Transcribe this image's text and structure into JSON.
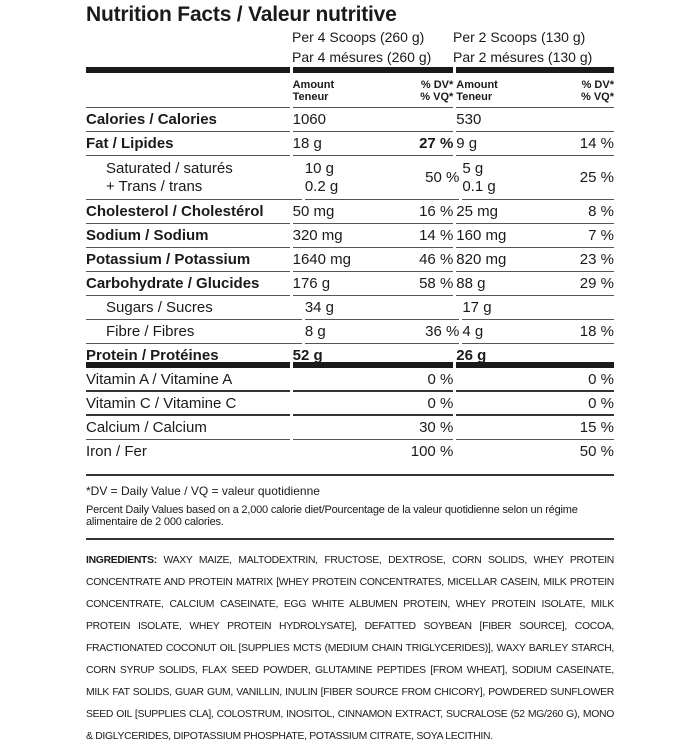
{
  "title": "Nutrition Facts / Valeur nutritive",
  "servings": [
    {
      "en": "Per 4 Scoops (260 g)",
      "fr": "Par 4 mésures (260 g)"
    },
    {
      "en": "Per 2 Scoops (130 g)",
      "fr": "Par 2 mésures (130 g)"
    }
  ],
  "header": {
    "amount": "Amount",
    "teneur": "Teneur",
    "dv": "% DV*",
    "vq": "% VQ*"
  },
  "rows": [
    {
      "label": "Calories / Calories",
      "a1": "1060",
      "d1": "",
      "a2": "530",
      "d2": ""
    },
    {
      "label": "Fat / Lipides",
      "a1": "18 g",
      "d1": "27 %",
      "a2": "9 g",
      "d2": "14 %"
    },
    {
      "label": "Saturated / saturés",
      "label2": "+ Trans / trans",
      "a1": "10 g",
      "a1b": "0.2 g",
      "d1": "50 %",
      "a2": "5 g",
      "a2b": "0.1 g",
      "d2": "25 %"
    },
    {
      "label": "Cholesterol / Cholestérol",
      "a1": "50 mg",
      "d1": "16 %",
      "a2": "25 mg",
      "d2": "8 %"
    },
    {
      "label": "Sodium / Sodium",
      "a1": "320 mg",
      "d1": "14 %",
      "a2": "160 mg",
      "d2": "7 %"
    },
    {
      "label": "Potassium / Potassium",
      "a1": "1640 mg",
      "d1": "46 %",
      "a2": "820 mg",
      "d2": "23 %"
    },
    {
      "label": "Carbohydrate / Glucides",
      "a1": "176 g",
      "d1": "58 %",
      "a2": "88 g",
      "d2": "29 %"
    },
    {
      "label": "Sugars / Sucres",
      "a1": "34 g",
      "d1": "",
      "a2": "17 g",
      "d2": ""
    },
    {
      "label": "Fibre / Fibres",
      "a1": "8 g",
      "d1": "36 %",
      "a2": "4 g",
      "d2": "18 %"
    },
    {
      "label": "Protein / Protéines",
      "a1": "52 g",
      "d1": "",
      "a2": "26 g",
      "d2": ""
    },
    {
      "label": "Vitamin A / Vitamine A",
      "a1": "",
      "d1": "0 %",
      "a2": "",
      "d2": "0 %"
    },
    {
      "label": "Vitamin C / Vitamine C",
      "a1": "",
      "d1": "0 %",
      "a2": "",
      "d2": "0 %"
    },
    {
      "label": "Calcium / Calcium",
      "a1": "",
      "d1": "30 %",
      "a2": "",
      "d2": "15 %"
    },
    {
      "label": "Iron / Fer",
      "a1": "",
      "d1": "100 %",
      "a2": "",
      "d2": "50 %"
    }
  ],
  "footnote": "*DV = Daily Value / VQ = valeur quotidienne",
  "footnote2": "Percent Daily Values based on a 2,000 calorie diet/Pourcentage de la valeur quotidienne selon un régime alimentaire de 2 000 calories.",
  "ingredients_label": "INGREDIENTS:",
  "ingredients": "WAXY MAIZE, MALTODEXTRIN, FRUCTOSE, DEXTROSE, CORN SOLIDS, WHEY PROTEIN CONCENTRATE AND PROTEIN MATRIX [WHEY PROTEIN CONCENTRATES, MICELLAR CASEIN, MILK PROTEIN CONCENTRATE, CALCIUM CASEINATE, EGG WHITE ALBUMEN PROTEIN, WHEY PROTEIN ISOLATE, MILK PROTEIN ISOLATE, WHEY PROTEIN HYDROLYSATE], DEFATTED SOYBEAN [FIBER SOURCE], COCOA, FRACTIONATED COCONUT OIL [SUPPLIES MCTS (MEDIUM CHAIN TRIGLYCERIDES)], WAXY BARLEY STARCH, CORN SYRUP SOLIDS, FLAX SEED POWDER, GLUTAMINE PEPTIDES [FROM WHEAT], SODIUM CASEINATE, MILK FAT SOLIDS, GUAR GUM, VANILLIN, INULIN [FIBER SOURCE FROM CHICORY], POWDERED SUNFLOWER SEED OIL [SUPPLIES CLA], COLOSTRUM, INOSITOL, CINNAMON EXTRACT, SUCRALOSE (52 MG/260 G), MONO & DIGLYCERIDES, DIPOTASSIUM PHOSPHATE, POTASSIUM CITRATE, SOYA LECITHIN."
}
